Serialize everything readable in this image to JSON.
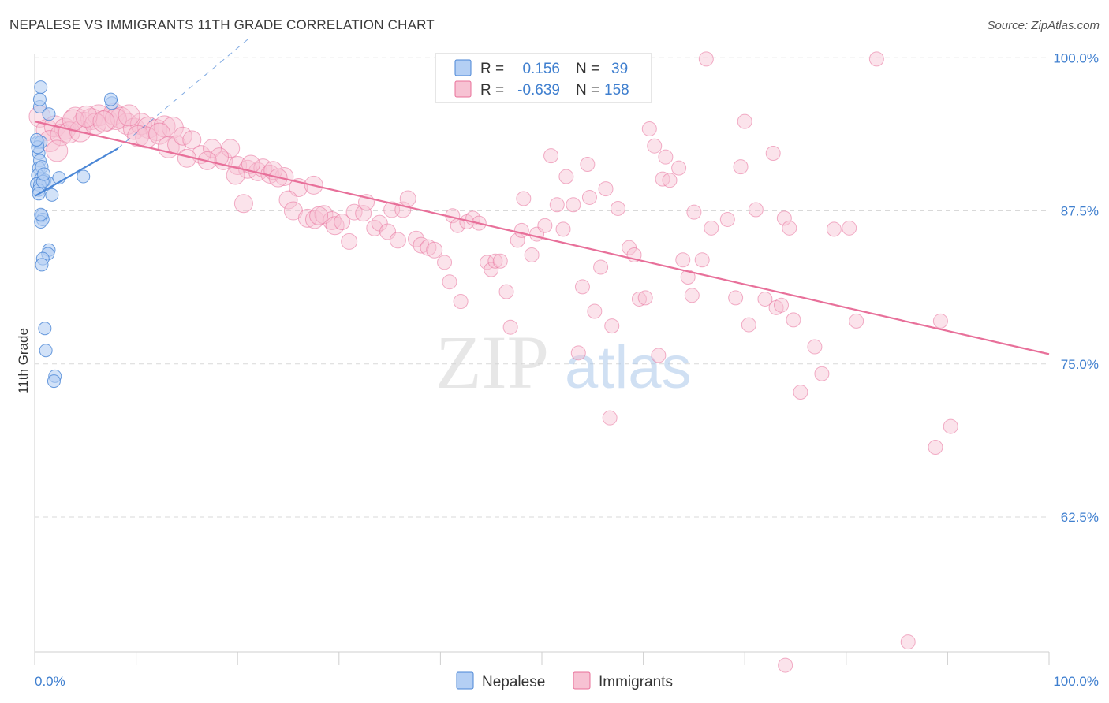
{
  "title": "NEPALESE VS IMMIGRANTS 11TH GRADE CORRELATION CHART",
  "source": "Source: ZipAtlas.com",
  "watermark": {
    "zip": "ZIP",
    "atlas": "atlas"
  },
  "colors": {
    "nepalese": "#4a86d6",
    "nepalese_fill": "#b4cff4",
    "immigrants": "#e8709a",
    "immigrants_fill": "#f7c2d3",
    "axis_label": "#3f7fcf",
    "grid": "#d9d9d9"
  },
  "legend_top": {
    "rows": [
      {
        "r_label": "R =",
        "r_value": "0.156",
        "n_label": "N =",
        "n_value": "39"
      },
      {
        "r_label": "R =",
        "r_value": "-0.639",
        "n_label": "N =",
        "n_value": "158"
      }
    ]
  },
  "chart_data": {
    "type": "scatter",
    "title": "NEPALESE VS IMMIGRANTS 11TH GRADE CORRELATION CHART",
    "xlabel": "",
    "ylabel": "11th Grade",
    "xlim": [
      0,
      100
    ],
    "ylim": [
      51.5,
      101.5
    ],
    "x_tick_labels": [
      "0.0%",
      "100.0%"
    ],
    "y_ticks": [
      62.5,
      75.0,
      87.5,
      100.0
    ],
    "y_tick_labels": [
      "62.5%",
      "75.0%",
      "87.5%",
      "100.0%"
    ],
    "grid": true,
    "legend_placement": "bottom-center",
    "series": [
      {
        "name": "Nepalese",
        "r": 0.156,
        "n": 39,
        "trend": {
          "x": [
            0,
            8.2
          ],
          "y": [
            88.7,
            92.6
          ]
        },
        "trend_extension": {
          "x": [
            8.2,
            21
          ],
          "y": [
            92.6,
            101.5
          ]
        },
        "points": [
          [
            0.6,
            97.6
          ],
          [
            0.5,
            96.0
          ],
          [
            0.5,
            96.6
          ],
          [
            1.4,
            95.4
          ],
          [
            7.6,
            96.3
          ],
          [
            7.5,
            96.6
          ],
          [
            0.3,
            93.1
          ],
          [
            0.6,
            93.1
          ],
          [
            0.4,
            92.2
          ],
          [
            0.5,
            91.6
          ],
          [
            0.4,
            91.0
          ],
          [
            0.7,
            91.1
          ],
          [
            0.3,
            90.4
          ],
          [
            0.6,
            90.1
          ],
          [
            1.0,
            90.0
          ],
          [
            1.3,
            89.8
          ],
          [
            2.4,
            90.2
          ],
          [
            4.8,
            90.3
          ],
          [
            0.2,
            89.7
          ],
          [
            0.5,
            89.6
          ],
          [
            0.4,
            89.2
          ],
          [
            1.7,
            88.8
          ],
          [
            0.7,
            87.1
          ],
          [
            0.8,
            86.8
          ],
          [
            0.6,
            86.6
          ],
          [
            1.4,
            84.3
          ],
          [
            1.3,
            84.0
          ],
          [
            0.8,
            83.6
          ],
          [
            0.7,
            83.1
          ],
          [
            1.0,
            77.9
          ],
          [
            1.1,
            76.1
          ],
          [
            2.0,
            74.0
          ],
          [
            1.9,
            73.6
          ],
          [
            0.3,
            92.7
          ],
          [
            0.8,
            89.9
          ],
          [
            0.2,
            93.3
          ],
          [
            0.9,
            90.5
          ],
          [
            0.4,
            88.9
          ],
          [
            0.6,
            87.2
          ]
        ]
      },
      {
        "name": "Immigrants",
        "r": -0.639,
        "n": 158,
        "trend": {
          "x": [
            0,
            100
          ],
          "y": [
            94.8,
            75.8
          ]
        },
        "points": [
          [
            0.5,
            95.2
          ],
          [
            1.2,
            94.1
          ],
          [
            2.0,
            94.4
          ],
          [
            3.0,
            94.2
          ],
          [
            4.0,
            95.1
          ],
          [
            4.8,
            94.7
          ],
          [
            5.6,
            95.0
          ],
          [
            6.3,
            95.3
          ],
          [
            7.1,
            94.9
          ],
          [
            7.8,
            95.4
          ],
          [
            8.5,
            95.1
          ],
          [
            9.1,
            94.6
          ],
          [
            9.8,
            94.2
          ],
          [
            10.5,
            94.6
          ],
          [
            11.2,
            94.3
          ],
          [
            12.0,
            94.1
          ],
          [
            12.8,
            94.4
          ],
          [
            13.6,
            94.3
          ],
          [
            1.5,
            93.2
          ],
          [
            2.6,
            93.7
          ],
          [
            3.4,
            93.9
          ],
          [
            4.5,
            94.0
          ],
          [
            6.0,
            94.6
          ],
          [
            8.0,
            95.0
          ],
          [
            10.2,
            93.6
          ],
          [
            11.0,
            93.5
          ],
          [
            12.3,
            93.8
          ],
          [
            13.2,
            92.7
          ],
          [
            14.0,
            92.9
          ],
          [
            14.6,
            93.6
          ],
          [
            15.5,
            93.3
          ],
          [
            16.4,
            92.1
          ],
          [
            17.5,
            92.6
          ],
          [
            18.6,
            91.6
          ],
          [
            19.3,
            92.6
          ],
          [
            20.0,
            91.2
          ],
          [
            21.0,
            90.9
          ],
          [
            22.0,
            90.7
          ],
          [
            22.5,
            91.0
          ],
          [
            23.2,
            90.5
          ],
          [
            24.6,
            90.3
          ],
          [
            26.0,
            89.4
          ],
          [
            27.5,
            89.6
          ],
          [
            18.2,
            91.9
          ],
          [
            19.8,
            90.4
          ],
          [
            21.3,
            91.3
          ],
          [
            23.5,
            90.8
          ],
          [
            25.0,
            88.4
          ],
          [
            25.5,
            87.5
          ],
          [
            26.9,
            86.9
          ],
          [
            27.6,
            86.8
          ],
          [
            28.5,
            87.2
          ],
          [
            29.3,
            86.7
          ],
          [
            29.6,
            86.3
          ],
          [
            30.3,
            86.6
          ],
          [
            31.0,
            85.0
          ],
          [
            31.5,
            87.4
          ],
          [
            32.4,
            87.3
          ],
          [
            32.7,
            88.2
          ],
          [
            33.5,
            86.1
          ],
          [
            34.0,
            86.5
          ],
          [
            34.8,
            85.8
          ],
          [
            35.2,
            87.6
          ],
          [
            35.8,
            85.1
          ],
          [
            36.3,
            87.6
          ],
          [
            36.8,
            88.5
          ],
          [
            37.6,
            85.2
          ],
          [
            38.1,
            84.7
          ],
          [
            38.8,
            84.5
          ],
          [
            39.4,
            84.3
          ],
          [
            40.4,
            83.3
          ],
          [
            40.9,
            81.7
          ],
          [
            41.2,
            87.1
          ],
          [
            41.7,
            86.3
          ],
          [
            42.0,
            80.1
          ],
          [
            42.6,
            86.6
          ],
          [
            43.2,
            86.9
          ],
          [
            43.8,
            86.5
          ],
          [
            44.6,
            83.3
          ],
          [
            45.0,
            82.7
          ],
          [
            45.4,
            83.4
          ],
          [
            45.9,
            83.4
          ],
          [
            46.5,
            80.9
          ],
          [
            46.9,
            78.0
          ],
          [
            47.6,
            85.1
          ],
          [
            48.0,
            85.9
          ],
          [
            48.2,
            88.5
          ],
          [
            49.0,
            83.9
          ],
          [
            49.5,
            85.6
          ],
          [
            50.3,
            86.3
          ],
          [
            50.9,
            92.0
          ],
          [
            51.5,
            88.0
          ],
          [
            52.1,
            86.0
          ],
          [
            52.4,
            90.3
          ],
          [
            53.1,
            88.0
          ],
          [
            53.6,
            75.9
          ],
          [
            54.0,
            81.3
          ],
          [
            54.5,
            91.3
          ],
          [
            54.7,
            88.6
          ],
          [
            55.2,
            79.3
          ],
          [
            55.8,
            82.9
          ],
          [
            56.3,
            89.3
          ],
          [
            56.7,
            70.6
          ],
          [
            56.9,
            78.1
          ],
          [
            57.5,
            87.7
          ],
          [
            58.6,
            84.5
          ],
          [
            59.1,
            83.9
          ],
          [
            59.6,
            80.3
          ],
          [
            60.2,
            80.4
          ],
          [
            60.6,
            94.2
          ],
          [
            61.1,
            92.8
          ],
          [
            61.5,
            75.7
          ],
          [
            61.9,
            90.1
          ],
          [
            62.2,
            91.9
          ],
          [
            62.6,
            90.0
          ],
          [
            63.5,
            91.0
          ],
          [
            63.9,
            83.5
          ],
          [
            64.4,
            82.1
          ],
          [
            64.8,
            80.6
          ],
          [
            65.0,
            87.4
          ],
          [
            65.8,
            83.5
          ],
          [
            66.2,
            99.9
          ],
          [
            66.7,
            86.1
          ],
          [
            68.3,
            86.8
          ],
          [
            69.1,
            80.4
          ],
          [
            69.6,
            91.1
          ],
          [
            70.0,
            94.8
          ],
          [
            70.4,
            78.2
          ],
          [
            71.1,
            87.6
          ],
          [
            72.0,
            80.3
          ],
          [
            72.8,
            92.2
          ],
          [
            73.1,
            79.6
          ],
          [
            73.6,
            79.8
          ],
          [
            73.9,
            86.9
          ],
          [
            74.4,
            86.1
          ],
          [
            74.8,
            78.6
          ],
          [
            75.5,
            72.7
          ],
          [
            76.9,
            76.4
          ],
          [
            77.6,
            74.2
          ],
          [
            78.8,
            86.0
          ],
          [
            80.3,
            86.1
          ],
          [
            81.0,
            78.5
          ],
          [
            83.0,
            99.9
          ],
          [
            86.1,
            52.3
          ],
          [
            88.8,
            68.2
          ],
          [
            90.3,
            69.9
          ],
          [
            89.3,
            78.5
          ],
          [
            74.0,
            50.4
          ],
          [
            2.2,
            92.4
          ],
          [
            3.8,
            94.9
          ],
          [
            5.1,
            95.2
          ],
          [
            6.8,
            94.8
          ],
          [
            9.3,
            95.3
          ],
          [
            15.0,
            91.8
          ],
          [
            17.0,
            91.6
          ],
          [
            20.6,
            88.1
          ],
          [
            24.0,
            90.2
          ],
          [
            28.0,
            87.1
          ]
        ]
      }
    ]
  },
  "legend_bottom": {
    "items": [
      {
        "label": "Nepalese"
      },
      {
        "label": "Immigrants"
      }
    ]
  }
}
